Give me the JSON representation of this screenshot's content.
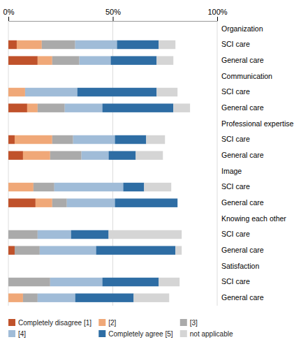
{
  "chart_data": {
    "type": "bar",
    "orientation": "horizontal",
    "stacked": true,
    "categories": [
      "Organization",
      "SCI care",
      "General care",
      "Communication",
      "SCI care",
      "General care",
      "Professional expertise",
      "SCI care",
      "General care",
      "Image",
      "SCI care",
      "General care",
      "Knowing each other",
      "SCI care",
      "General care",
      "Satisfaction",
      "SCI care",
      "General care"
    ],
    "series": [
      {
        "name": "Completely disagree [1]",
        "color": "#c0522b",
        "values": [
          0,
          4,
          14,
          0,
          0,
          9,
          0,
          3,
          7,
          0,
          0,
          13,
          0,
          0,
          3,
          0,
          0,
          0
        ]
      },
      {
        "name": "[2]",
        "color": "#f0a878",
        "values": [
          0,
          12,
          7,
          0,
          8,
          5,
          0,
          18,
          13,
          0,
          12,
          8,
          0,
          0,
          0,
          0,
          0,
          7
        ]
      },
      {
        "name": "[3]",
        "color": "#aaaaaa",
        "values": [
          0,
          16,
          13,
          0,
          0,
          13,
          0,
          10,
          15,
          0,
          10,
          7,
          0,
          14,
          12,
          0,
          20,
          7
        ]
      },
      {
        "name": "[4]",
        "color": "#a0bcd8",
        "values": [
          0,
          20,
          15,
          0,
          25,
          18,
          0,
          20,
          13,
          0,
          33,
          23,
          0,
          16,
          27,
          0,
          25,
          18
        ]
      },
      {
        "name": "Completely agree [5]",
        "color": "#2e6da4",
        "values": [
          0,
          20,
          22,
          0,
          38,
          34,
          0,
          15,
          13,
          0,
          10,
          30,
          0,
          18,
          38,
          0,
          27,
          28
        ]
      },
      {
        "name": "not applicable",
        "color": "#d5d5d5",
        "values": [
          0,
          8,
          8,
          0,
          10,
          8,
          0,
          9,
          13,
          0,
          13,
          0,
          0,
          35,
          3,
          0,
          10,
          17
        ]
      }
    ],
    "xlim": [
      0,
      100
    ],
    "xticks": [
      {
        "value": 0,
        "label": "0%"
      },
      {
        "value": 50,
        "label": "50%"
      },
      {
        "value": 100,
        "label": "100%"
      }
    ],
    "grid": true,
    "legend": "bottom"
  }
}
